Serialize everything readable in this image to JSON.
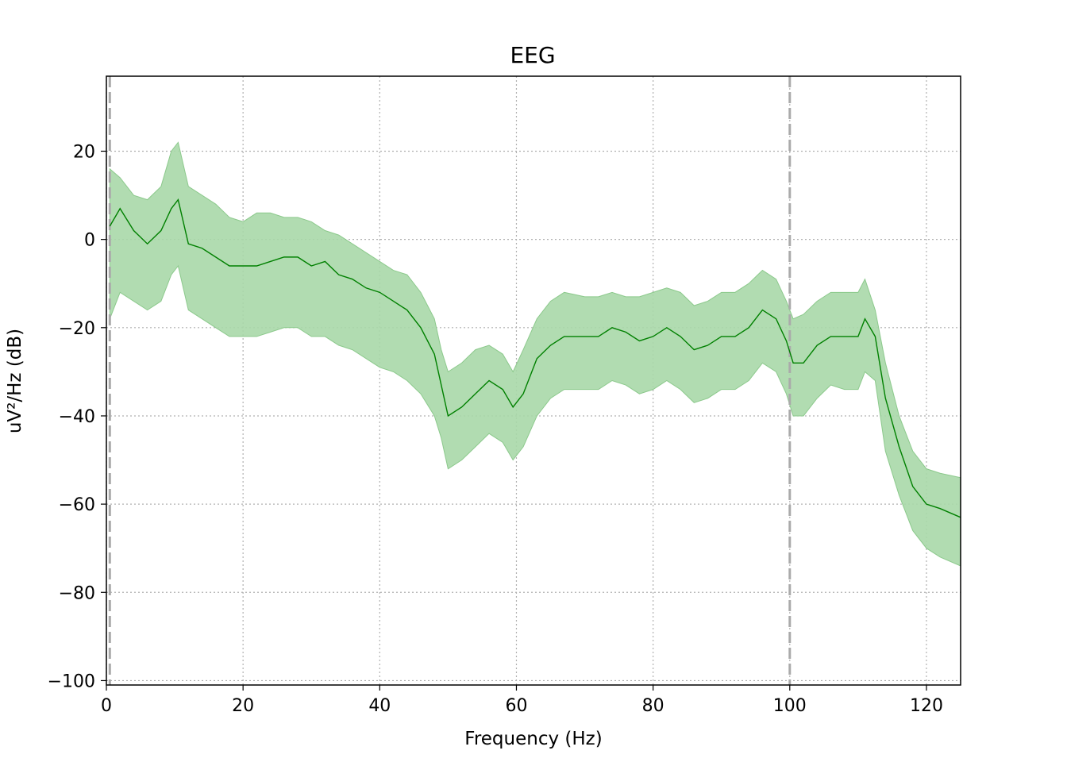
{
  "chart_data": {
    "type": "area",
    "title": "EEG",
    "xlabel": "Frequency (Hz)",
    "ylabel": "uV²/Hz (dB)",
    "xlim": [
      0,
      125
    ],
    "ylim": [
      -101,
      37
    ],
    "x_ticks": [
      0,
      20,
      40,
      60,
      80,
      100,
      120
    ],
    "y_ticks": [
      20,
      0,
      -20,
      -40,
      -60,
      -80,
      -100
    ],
    "y_tick_labels": [
      "20",
      "0",
      "−20",
      "−40",
      "−60",
      "−80",
      "−100"
    ],
    "grid": true,
    "legend": "none",
    "bad_frequency_markers_hz": [
      0.5,
      100
    ],
    "series": [
      {
        "color": "#008000",
        "band_color": "#a8d8a8",
        "x": [
          0.5,
          2,
          4,
          6,
          8,
          9.5,
          10.5,
          12,
          14,
          16,
          18,
          20,
          22,
          24,
          26,
          28,
          30,
          32,
          34,
          36,
          38,
          40,
          42,
          44,
          46,
          48,
          49,
          50,
          52,
          54,
          56,
          58,
          59.5,
          61,
          63,
          65,
          67,
          70,
          72,
          74,
          76,
          78,
          80,
          82,
          84,
          86,
          88,
          90,
          92,
          94,
          96,
          98,
          99.5,
          100.5,
          102,
          104,
          106,
          108,
          110,
          111,
          112.5,
          114,
          116,
          118,
          120,
          122,
          125
        ],
        "mean": [
          3,
          7,
          2,
          -1,
          2,
          7,
          9,
          -1,
          -2,
          -4,
          -6,
          -6,
          -6,
          -5,
          -4,
          -4,
          -6,
          -5,
          -8,
          -9,
          -11,
          -12,
          -14,
          -16,
          -20,
          -26,
          -33,
          -40,
          -38,
          -35,
          -32,
          -34,
          -38,
          -35,
          -27,
          -24,
          -22,
          -22,
          -22,
          -20,
          -21,
          -23,
          -22,
          -20,
          -22,
          -25,
          -24,
          -22,
          -22,
          -20,
          -16,
          -18,
          -23,
          -28,
          -28,
          -24,
          -22,
          -22,
          -22,
          -18,
          -22,
          -36,
          -47,
          -56,
          -60,
          -61,
          -63
        ],
        "upper": [
          16,
          14,
          10,
          9,
          12,
          20,
          22,
          12,
          10,
          8,
          5,
          4,
          6,
          6,
          5,
          5,
          4,
          2,
          1,
          -1,
          -3,
          -5,
          -7,
          -8,
          -12,
          -18,
          -25,
          -30,
          -28,
          -25,
          -24,
          -26,
          -30,
          -25,
          -18,
          -14,
          -12,
          -13,
          -13,
          -12,
          -13,
          -13,
          -12,
          -11,
          -12,
          -15,
          -14,
          -12,
          -12,
          -10,
          -7,
          -9,
          -14,
          -18,
          -17,
          -14,
          -12,
          -12,
          -12,
          -9,
          -16,
          -28,
          -40,
          -48,
          -52,
          -53,
          -54
        ],
        "lower": [
          -18,
          -12,
          -14,
          -16,
          -14,
          -8,
          -6,
          -16,
          -18,
          -20,
          -22,
          -22,
          -22,
          -21,
          -20,
          -20,
          -22,
          -22,
          -24,
          -25,
          -27,
          -29,
          -30,
          -32,
          -35,
          -40,
          -45,
          -52,
          -50,
          -47,
          -44,
          -46,
          -50,
          -47,
          -40,
          -36,
          -34,
          -34,
          -34,
          -32,
          -33,
          -35,
          -34,
          -32,
          -34,
          -37,
          -36,
          -34,
          -34,
          -32,
          -28,
          -30,
          -35,
          -40,
          -40,
          -36,
          -33,
          -34,
          -34,
          -30,
          -32,
          -48,
          -58,
          -66,
          -70,
          -72,
          -74
        ]
      }
    ]
  }
}
